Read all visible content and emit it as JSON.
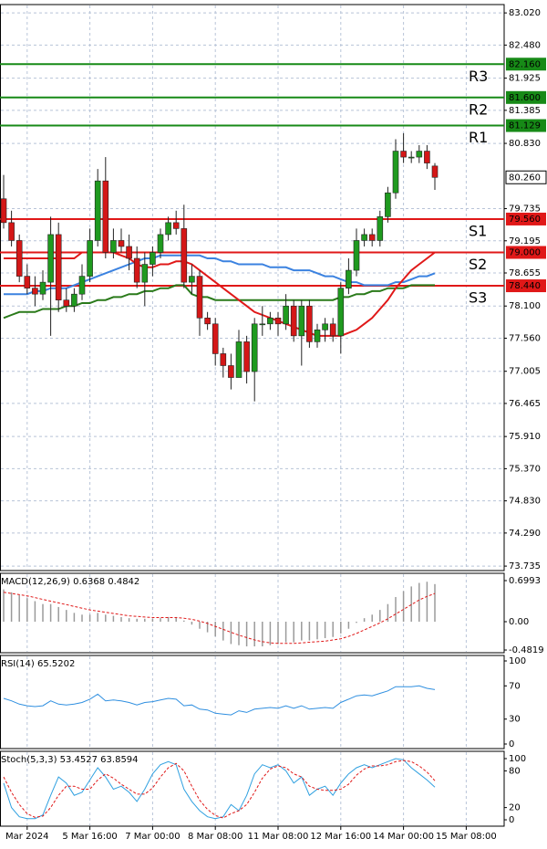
{
  "chart_data": [
    {
      "type": "candlestick",
      "categories": [
        null,
        null,
        null,
        "Mar 2024",
        null,
        null,
        null,
        null,
        null,
        null,
        null,
        "5 Mar 16:00",
        null,
        null,
        null,
        null,
        null,
        null,
        null,
        "7 Mar 00:00",
        null,
        null,
        null,
        null,
        null,
        null,
        null,
        "8 Mar 08:00",
        null,
        null,
        null,
        null,
        null,
        null,
        null,
        "11 Mar 08:00",
        null,
        null,
        null,
        null,
        null,
        null,
        null,
        "12 Mar 16:00",
        null,
        null,
        null,
        null,
        null,
        null,
        null,
        "14 Mar 00:00",
        null,
        null,
        null,
        null,
        null,
        null,
        null,
        "15 Mar 08:00",
        null,
        null,
        null,
        null
      ],
      "open": [
        79.9,
        79.5,
        79.2,
        78.6,
        78.4,
        78.3,
        78.5,
        79.3,
        78.2,
        78.1,
        78.3,
        78.6,
        79.2,
        80.2,
        79.0,
        79.2,
        79.1,
        78.9,
        78.5,
        78.8,
        79.0,
        79.3,
        79.5,
        79.4,
        78.5,
        78.6,
        77.9,
        77.8,
        77.3,
        77.1,
        76.9,
        77.5,
        77.0,
        77.8,
        77.8,
        77.9,
        77.8,
        78.1,
        77.6,
        78.1,
        77.5,
        77.7,
        77.8,
        77.6,
        78.4,
        78.7,
        79.2,
        79.3,
        79.2,
        79.6,
        80.0,
        80.7,
        80.6,
        80.6,
        80.7,
        80.45,
        null,
        null,
        null,
        null,
        null,
        null,
        null,
        null
      ],
      "high": [
        80.3,
        79.7,
        79.3,
        78.8,
        78.6,
        78.7,
        79.6,
        79.5,
        78.4,
        78.4,
        78.8,
        79.4,
        80.4,
        80.6,
        79.4,
        79.4,
        79.3,
        79.1,
        79.0,
        79.1,
        79.4,
        79.6,
        79.7,
        79.8,
        78.8,
        78.7,
        78.0,
        77.9,
        77.4,
        77.3,
        77.7,
        77.6,
        77.9,
        78.1,
        78.0,
        78.0,
        78.3,
        78.2,
        78.2,
        78.2,
        77.8,
        77.9,
        77.9,
        78.5,
        78.9,
        79.4,
        79.4,
        79.4,
        79.7,
        80.1,
        80.9,
        81.0,
        80.7,
        80.8,
        80.8,
        80.5,
        null,
        null,
        null,
        null,
        null,
        null,
        null,
        null
      ],
      "low": [
        79.4,
        79.1,
        78.5,
        78.3,
        78.1,
        78.2,
        77.6,
        78.0,
        78.0,
        78.0,
        78.2,
        78.5,
        79.1,
        78.9,
        78.9,
        79.0,
        78.7,
        78.4,
        78.1,
        78.6,
        78.9,
        79.2,
        79.3,
        78.4,
        78.3,
        77.6,
        77.7,
        77.1,
        76.9,
        76.7,
        76.9,
        76.8,
        76.5,
        77.6,
        77.7,
        77.6,
        77.7,
        77.5,
        77.1,
        77.4,
        77.4,
        77.5,
        77.5,
        77.3,
        78.3,
        78.6,
        79.1,
        79.1,
        79.1,
        79.5,
        79.9,
        80.5,
        80.5,
        80.5,
        80.4,
        80.05,
        null,
        null,
        null,
        null,
        null,
        null,
        null,
        null
      ],
      "close": [
        79.5,
        79.2,
        78.6,
        78.4,
        78.3,
        78.5,
        79.3,
        78.2,
        78.1,
        78.3,
        78.6,
        79.2,
        80.2,
        79.0,
        79.2,
        79.1,
        78.9,
        78.5,
        78.8,
        79.0,
        79.3,
        79.5,
        79.4,
        78.5,
        78.6,
        77.9,
        77.8,
        77.3,
        77.1,
        76.9,
        77.5,
        77.0,
        77.8,
        77.8,
        77.9,
        77.8,
        78.1,
        77.6,
        78.1,
        77.5,
        77.7,
        77.8,
        77.6,
        78.4,
        78.7,
        79.2,
        79.3,
        79.2,
        79.6,
        80.0,
        80.7,
        80.6,
        80.6,
        80.7,
        80.5,
        80.26,
        null,
        null,
        null,
        null,
        null,
        null,
        null,
        null
      ],
      "up_color": "#1f9a1f",
      "down_color": "#d41717",
      "overlays": [
        {
          "color": "#2a7a1a",
          "values": [
            77.9,
            77.95,
            78.0,
            78.0,
            78.0,
            78.05,
            78.05,
            78.05,
            78.1,
            78.1,
            78.15,
            78.15,
            78.2,
            78.2,
            78.25,
            78.25,
            78.3,
            78.3,
            78.35,
            78.35,
            78.4,
            78.4,
            78.45,
            78.45,
            78.3,
            78.25,
            78.25,
            78.2,
            78.2,
            78.2,
            78.2,
            78.2,
            78.2,
            78.2,
            78.2,
            78.2,
            78.2,
            78.2,
            78.2,
            78.2,
            78.2,
            78.2,
            78.2,
            78.25,
            78.25,
            78.3,
            78.3,
            78.35,
            78.35,
            78.4,
            78.4,
            78.4,
            78.45,
            78.45,
            78.45,
            78.45,
            null,
            null,
            null,
            null,
            null,
            null,
            null,
            null
          ]
        },
        {
          "color": "#3b82e0",
          "values": [
            78.3,
            78.3,
            78.3,
            78.3,
            78.35,
            78.35,
            78.4,
            78.4,
            78.4,
            78.45,
            78.5,
            78.55,
            78.6,
            78.65,
            78.7,
            78.75,
            78.8,
            78.85,
            78.9,
            78.9,
            78.95,
            78.95,
            78.95,
            78.95,
            78.95,
            78.95,
            78.9,
            78.9,
            78.85,
            78.85,
            78.8,
            78.8,
            78.8,
            78.8,
            78.75,
            78.75,
            78.75,
            78.7,
            78.7,
            78.7,
            78.65,
            78.6,
            78.6,
            78.55,
            78.5,
            78.5,
            78.45,
            78.45,
            78.45,
            78.45,
            78.5,
            78.5,
            78.55,
            78.6,
            78.6,
            78.65,
            null,
            null,
            null,
            null,
            null,
            null,
            null,
            null
          ]
        },
        {
          "color": "#e01818",
          "values": [
            78.9,
            78.9,
            78.9,
            78.9,
            78.9,
            78.9,
            78.9,
            78.9,
            78.9,
            78.9,
            79.0,
            79.0,
            79.0,
            79.0,
            79.0,
            78.95,
            78.9,
            78.8,
            78.75,
            78.75,
            78.8,
            78.8,
            78.85,
            78.85,
            78.8,
            78.7,
            78.6,
            78.5,
            78.4,
            78.3,
            78.2,
            78.1,
            78.0,
            77.95,
            77.9,
            77.85,
            77.8,
            77.75,
            77.7,
            77.65,
            77.6,
            77.6,
            77.6,
            77.6,
            77.65,
            77.7,
            77.8,
            77.9,
            78.05,
            78.2,
            78.4,
            78.55,
            78.7,
            78.8,
            78.9,
            79.0,
            null,
            null,
            null,
            null,
            null,
            null,
            null,
            null
          ]
        }
      ],
      "levels": [
        {
          "name": "R3",
          "value": 82.16,
          "label": "82.160",
          "color": "#178a17"
        },
        {
          "name": "R2",
          "value": 81.6,
          "label": "81.600",
          "color": "#178a17"
        },
        {
          "name": "R1",
          "value": 81.129,
          "label": "81.129",
          "color": "#178a17"
        },
        {
          "name": "S1",
          "value": 79.56,
          "label": "79.560",
          "color": "#e01818"
        },
        {
          "name": "S2",
          "value": 79.0,
          "label": "79.000",
          "color": "#e01818"
        },
        {
          "name": "S3",
          "value": 78.44,
          "label": "78.440",
          "color": "#e01818"
        }
      ],
      "last_price": {
        "value": 80.26,
        "label": "80.260"
      },
      "ylim": [
        73.66,
        83.16
      ],
      "yticks": [
        {
          "value": 83.02,
          "label": "83.020"
        },
        {
          "value": 82.48,
          "label": "82.480"
        },
        81.925,
        81.385,
        {
          "value": 80.83,
          "label": "80.830"
        },
        79.735,
        79.195,
        78.655,
        {
          "value": 78.1,
          "label": "78.100"
        },
        {
          "value": 77.56,
          "label": "77.560"
        },
        {
          "value": 77.005,
          "label": "77.005"
        },
        76.465,
        {
          "value": 75.91,
          "label": "75.910"
        },
        {
          "value": 75.37,
          "label": "75.370"
        },
        {
          "value": 74.83,
          "label": "74.830"
        },
        {
          "value": 74.29,
          "label": "74.290"
        },
        73.735
      ],
      "grid": true
    },
    {
      "type": "macd",
      "title": "MACD(12,26,9) 0.6368 0.4842",
      "histogram": {
        "color": "#9a9a9a",
        "values": [
          0.55,
          0.5,
          0.45,
          0.4,
          0.35,
          0.3,
          0.3,
          0.25,
          0.2,
          0.15,
          0.12,
          0.12,
          0.15,
          0.12,
          0.1,
          0.08,
          0.06,
          0.05,
          0.05,
          0.05,
          0.06,
          0.08,
          0.08,
          0.02,
          -0.05,
          -0.12,
          -0.18,
          -0.25,
          -0.32,
          -0.38,
          -0.4,
          -0.42,
          -0.42,
          -0.42,
          -0.4,
          -0.38,
          -0.35,
          -0.35,
          -0.32,
          -0.32,
          -0.3,
          -0.28,
          -0.26,
          -0.2,
          -0.12,
          -0.02,
          0.06,
          0.12,
          0.2,
          0.3,
          0.42,
          0.52,
          0.6,
          0.66,
          0.68,
          0.64
        ]
      },
      "signal": {
        "color": "#e01818",
        "values": [
          0.5,
          0.48,
          0.46,
          0.44,
          0.41,
          0.38,
          0.35,
          0.32,
          0.29,
          0.26,
          0.23,
          0.2,
          0.18,
          0.16,
          0.14,
          0.12,
          0.1,
          0.09,
          0.08,
          0.07,
          0.07,
          0.07,
          0.07,
          0.06,
          0.04,
          0.01,
          -0.03,
          -0.08,
          -0.13,
          -0.18,
          -0.23,
          -0.27,
          -0.31,
          -0.34,
          -0.36,
          -0.37,
          -0.37,
          -0.37,
          -0.36,
          -0.35,
          -0.34,
          -0.33,
          -0.31,
          -0.29,
          -0.25,
          -0.2,
          -0.14,
          -0.08,
          -0.02,
          0.05,
          0.13,
          0.21,
          0.29,
          0.37,
          0.43,
          0.48
        ]
      },
      "ylim": [
        -0.528,
        0.8236
      ],
      "yticks": [
        0.6993,
        {
          "value": 0,
          "label": "0.00"
        },
        -0.4819
      ]
    },
    {
      "type": "line",
      "title": "RSI(14) 65.5202",
      "series": [
        {
          "color": "#2f8fe0",
          "values": [
            55,
            52,
            48,
            46,
            45,
            46,
            52,
            48,
            47,
            48,
            50,
            54,
            60,
            52,
            53,
            52,
            50,
            47,
            50,
            51,
            53,
            55,
            54,
            46,
            47,
            42,
            41,
            37,
            36,
            35,
            40,
            38,
            42,
            43,
            44,
            43,
            46,
            43,
            46,
            42,
            43,
            44,
            43,
            50,
            54,
            58,
            59,
            58,
            61,
            64,
            69,
            69,
            69,
            70,
            67,
            65.5202
          ]
        }
      ],
      "ylim": [
        -5.5,
        106.6
      ],
      "yticks": [
        100,
        70,
        30,
        0
      ]
    },
    {
      "type": "line",
      "title": "Stoch(5,3,3) 53.4527 63.8594",
      "series": [
        {
          "color": "#2fa0e0",
          "values": [
            60,
            20,
            5,
            2,
            2,
            8,
            40,
            70,
            60,
            40,
            45,
            65,
            85,
            70,
            50,
            55,
            45,
            30,
            50,
            75,
            90,
            95,
            90,
            50,
            30,
            15,
            5,
            2,
            5,
            25,
            15,
            40,
            75,
            90,
            85,
            90,
            80,
            60,
            70,
            40,
            50,
            55,
            40,
            60,
            75,
            85,
            90,
            85,
            90,
            95,
            100,
            98,
            85,
            75,
            65,
            53.4527
          ]
        },
        {
          "color": "#e01818",
          "dashed": true,
          "values": [
            70,
            45,
            25,
            10,
            4,
            6,
            20,
            40,
            55,
            55,
            50,
            50,
            65,
            75,
            68,
            58,
            50,
            42,
            42,
            52,
            70,
            85,
            92,
            80,
            55,
            32,
            17,
            7,
            3,
            10,
            15,
            25,
            45,
            68,
            83,
            88,
            85,
            75,
            70,
            55,
            50,
            48,
            48,
            50,
            58,
            73,
            83,
            88,
            88,
            90,
            95,
            97,
            95,
            88,
            78,
            63.8594
          ]
        }
      ],
      "ylim": [
        -10.4,
        111.9
      ],
      "yticks": [
        100,
        80,
        20,
        0
      ]
    }
  ]
}
